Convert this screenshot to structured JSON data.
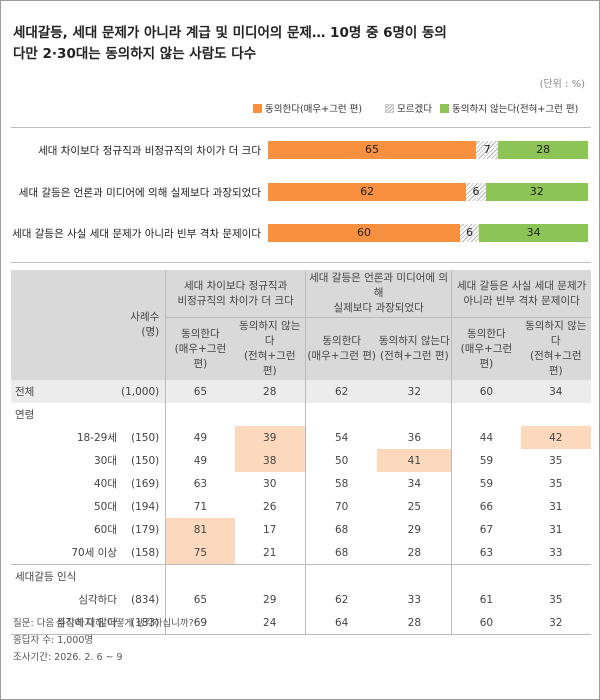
{
  "title_line1": "세대갈등, 세대 문제가 아니라 계급 및 미디어의 문제… 10명 중 6명이 동의",
  "title_line2": "다만 2·30대는 동의하지 않는 사람도 다수",
  "unit": "(단위 : %)",
  "colors": {
    "agree": "#f7913f",
    "unknown": "#ffffff",
    "disagree": "#8dc456",
    "highlight": "#fcd9bd",
    "header": "#d9d9d9"
  },
  "chart_data": {
    "type": "bar",
    "stacked": true,
    "orientation": "horizontal",
    "categories": [
      "세대 차이보다 정규직과 비정규직의 차이가 더 크다",
      "세대 갈등은 언론과 미디어에 의해 실제보다 과장되었다",
      "세대 갈등은 사실 세대 문제가 아니라 빈부 격차 문제이다"
    ],
    "series": [
      {
        "name": "동의한다(매우+그런 편)",
        "values": [
          65,
          62,
          60
        ]
      },
      {
        "name": "모르겠다",
        "values": [
          7,
          6,
          6
        ]
      },
      {
        "name": "동의하지 않는다(전혀+그런 편)",
        "values": [
          28,
          32,
          34
        ]
      }
    ],
    "xlim": [
      0,
      100
    ],
    "legend_position": "top-right"
  },
  "table": {
    "size_header_1": "사례수",
    "size_header_2": "(명)",
    "groups": [
      {
        "line1": "세대 차이보다 정규직과",
        "line2": "비정규직의 차이가 더 크다"
      },
      {
        "line1": "세대 갈등은 언론과 미디어에 의해",
        "line2": "실제보다 과장되었다"
      },
      {
        "line1": "세대 갈등은 사실 세대 문제가",
        "line2": "아니라 빈부 격차 문제이다"
      }
    ],
    "sub_agree_1": "동의한다",
    "sub_agree_2": "(매우+그런 편)",
    "sub_disagree_1": "동의하지 않는다",
    "sub_disagree_2": "(전혀+그런 편)",
    "total": {
      "label": "전체",
      "n": "(1,000)",
      "values": [
        65,
        28,
        62,
        32,
        60,
        34
      ]
    },
    "section_age": "연령",
    "age_rows": [
      {
        "label": "18-29세",
        "n": "(150)",
        "values": [
          49,
          39,
          54,
          36,
          44,
          42
        ],
        "hl": [
          false,
          true,
          false,
          false,
          false,
          true
        ]
      },
      {
        "label": "30대",
        "n": "(150)",
        "values": [
          49,
          38,
          50,
          41,
          59,
          35
        ],
        "hl": [
          false,
          true,
          false,
          true,
          false,
          false
        ]
      },
      {
        "label": "40대",
        "n": "(169)",
        "values": [
          63,
          30,
          58,
          34,
          59,
          35
        ],
        "hl": [
          false,
          false,
          false,
          false,
          false,
          false
        ]
      },
      {
        "label": "50대",
        "n": "(194)",
        "values": [
          71,
          26,
          70,
          25,
          66,
          31
        ],
        "hl": [
          false,
          false,
          false,
          false,
          false,
          false
        ]
      },
      {
        "label": "60대",
        "n": "(179)",
        "values": [
          81,
          17,
          68,
          29,
          67,
          31
        ],
        "hl": [
          true,
          false,
          false,
          false,
          false,
          false
        ]
      },
      {
        "label": "70세 이상",
        "n": "(158)",
        "values": [
          75,
          21,
          68,
          28,
          63,
          33
        ],
        "hl": [
          true,
          false,
          false,
          false,
          false,
          false
        ]
      }
    ],
    "section_perception": "세대갈등 인식",
    "perception_rows": [
      {
        "label": "심각하다",
        "n": "(834)",
        "values": [
          65,
          29,
          62,
          33,
          61,
          35
        ],
        "hl": [
          false,
          false,
          false,
          false,
          false,
          false
        ]
      },
      {
        "label": "심각하지 않다",
        "n": "(133)",
        "values": [
          69,
          24,
          64,
          28,
          60,
          32
        ],
        "hl": [
          false,
          false,
          false,
          false,
          false,
          false
        ]
      }
    ]
  },
  "footer": {
    "question": "질문: 다음 주장에 대해 어떻게 생각하십니까?",
    "respondents": "응답자 수: 1,000명",
    "period": "조사기간: 2026. 2. 6 ~ 9"
  }
}
